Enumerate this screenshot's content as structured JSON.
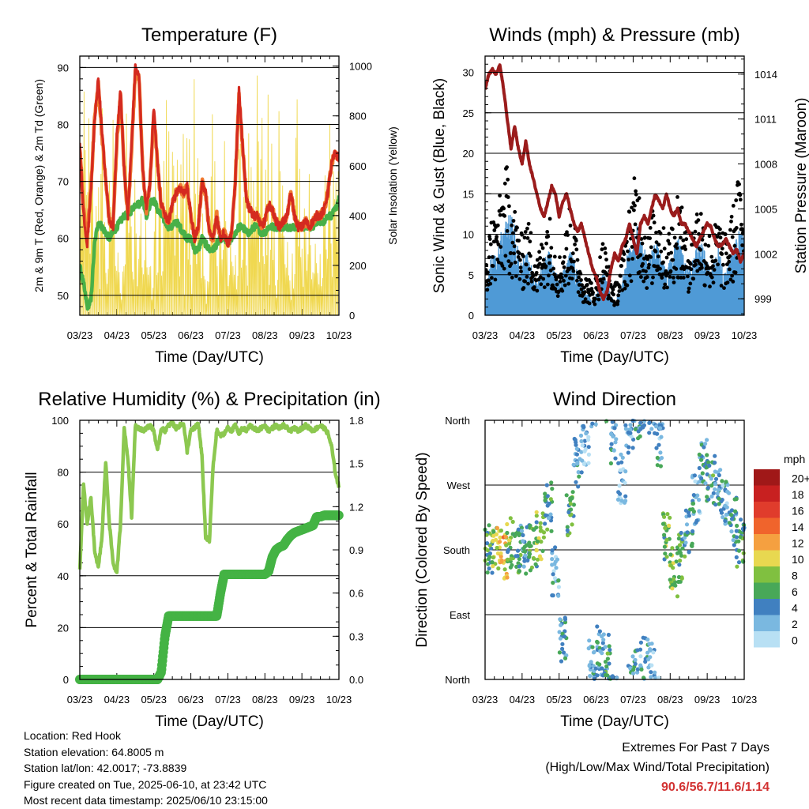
{
  "chart_data": [
    {
      "id": "temperature",
      "type": "line",
      "title": "Temperature (F)",
      "xlabel": "Time (Day/UTC)",
      "ylabel": "2m & 9m T (Red, Orange) & 2m Td (Green)",
      "ylabel_right": "Solar Insolation (Yellow)",
      "x_ticks": [
        "03/23",
        "04/23",
        "05/23",
        "06/23",
        "07/23",
        "08/23",
        "09/23",
        "10/23"
      ],
      "ylim": [
        46.5,
        92
      ],
      "y_ticks": [
        50,
        60,
        70,
        80,
        90
      ],
      "ylim_right": [
        0,
        1040
      ],
      "y_ticks_right": [
        0,
        200,
        400,
        600,
        800,
        1000
      ],
      "grid": "horizontal",
      "x": [
        0,
        0.1,
        0.2,
        0.3,
        0.4,
        0.5,
        0.6,
        0.7,
        0.8,
        0.9,
        1,
        1.1,
        1.2,
        1.3,
        1.4,
        1.5,
        1.6,
        1.7,
        1.8,
        1.9,
        2,
        2.1,
        2.2,
        2.3,
        2.4,
        2.5,
        2.6,
        2.7,
        2.8,
        2.9,
        3,
        3.1,
        3.2,
        3.3,
        3.4,
        3.5,
        3.6,
        3.7,
        3.8,
        3.9,
        4,
        4.1,
        4.2,
        4.3,
        4.4,
        4.5,
        4.6,
        4.7,
        4.8,
        4.9,
        5,
        5.1,
        5.2,
        5.3,
        5.4,
        5.5,
        5.6,
        5.7,
        5.8,
        5.9,
        6,
        6.1,
        6.2,
        6.3,
        6.4,
        6.5,
        6.6,
        6.7,
        6.8,
        6.9,
        7
      ],
      "series": [
        {
          "name": "2m T",
          "color": "#d42a20",
          "values": [
            77,
            64,
            59,
            68,
            81,
            88,
            79,
            70,
            63,
            62,
            78,
            86,
            72,
            64,
            77,
            90,
            89,
            72,
            65,
            70,
            83,
            73,
            66,
            64,
            63,
            66,
            68,
            69,
            68,
            69,
            64,
            60,
            62,
            70,
            68,
            61,
            60,
            64,
            60,
            61,
            59,
            61,
            70,
            86,
            76,
            67,
            65,
            64,
            64,
            62,
            63,
            66,
            65,
            63,
            62,
            63,
            64,
            68,
            64,
            62,
            62,
            63,
            62,
            63,
            64,
            64,
            65,
            68,
            73,
            75,
            74
          ]
        },
        {
          "name": "9m T",
          "color": "#f07a30",
          "values": [
            76,
            65,
            60,
            69,
            81,
            87,
            78,
            70,
            63,
            62,
            77,
            85,
            72,
            64,
            76,
            89,
            88,
            72,
            65,
            70,
            82,
            73,
            66,
            64,
            63,
            66,
            68,
            69,
            68,
            69,
            64,
            60,
            62,
            70,
            68,
            61,
            60,
            64,
            60,
            61,
            59,
            61,
            70,
            85,
            76,
            67,
            65,
            64,
            64,
            62,
            63,
            66,
            65,
            63,
            62,
            63,
            64,
            68,
            64,
            62,
            62,
            63,
            62,
            63,
            64,
            64,
            65,
            68,
            73,
            75,
            74
          ]
        },
        {
          "name": "2m Td",
          "color": "#48b048",
          "values": [
            55,
            52,
            48,
            49,
            59,
            63,
            62,
            61,
            60,
            61,
            62,
            63,
            64,
            64,
            65,
            66,
            66,
            67,
            64,
            66,
            67,
            65,
            64,
            63,
            62,
            62,
            63,
            62,
            61,
            60,
            60,
            58,
            58,
            60,
            59,
            58,
            58,
            59,
            60,
            60,
            59,
            60,
            61,
            62,
            62,
            61,
            61,
            62,
            62,
            61,
            61,
            62,
            62,
            62,
            62,
            62,
            62,
            62,
            62,
            62,
            62,
            62,
            62,
            62,
            63,
            63,
            63,
            64,
            64,
            65,
            67
          ]
        }
      ],
      "series_right": [
        {
          "name": "Solar Insolation",
          "color": "#f0d850"
        }
      ]
    },
    {
      "id": "winds",
      "type": "scatter",
      "title": "Winds (mph) & Pressure (mb)",
      "xlabel": "Time (Day/UTC)",
      "ylabel": "Sonic Wind & Gust (Blue, Black)",
      "ylabel_right": "Station Pressure (Maroon)",
      "x_ticks": [
        "03/23",
        "04/23",
        "05/23",
        "06/23",
        "07/23",
        "08/23",
        "09/23",
        "10/23"
      ],
      "ylim": [
        0,
        32
      ],
      "y_ticks": [
        0,
        5,
        10,
        15,
        20,
        25,
        30
      ],
      "ylim_right": [
        997.9,
        1015.2
      ],
      "y_ticks_right": [
        999,
        1002,
        1005,
        1008,
        1011,
        1014
      ],
      "grid": "horizontal",
      "x": [
        0,
        0.1,
        0.2,
        0.3,
        0.4,
        0.5,
        0.6,
        0.7,
        0.8,
        0.9,
        1,
        1.1,
        1.2,
        1.3,
        1.4,
        1.5,
        1.6,
        1.7,
        1.8,
        1.9,
        2,
        2.1,
        2.2,
        2.3,
        2.4,
        2.5,
        2.6,
        2.7,
        2.8,
        2.9,
        3,
        3.1,
        3.2,
        3.3,
        3.4,
        3.5,
        3.6,
        3.7,
        3.8,
        3.9,
        4,
        4.1,
        4.2,
        4.3,
        4.4,
        4.5,
        4.6,
        4.7,
        4.8,
        4.9,
        5,
        5.1,
        5.2,
        5.3,
        5.4,
        5.5,
        5.6,
        5.7,
        5.8,
        5.9,
        6,
        6.1,
        6.2,
        6.3,
        6.4,
        6.5,
        6.6,
        6.7,
        6.8,
        6.9,
        7
      ],
      "series": [
        {
          "name": "Sonic Wind",
          "color": "#4f9ad6",
          "values": [
            2,
            4,
            6,
            5,
            7,
            8,
            9,
            9,
            8,
            6,
            5,
            6,
            5,
            4,
            3,
            4,
            5,
            6,
            5,
            4,
            3,
            4,
            5,
            6,
            5,
            4,
            3,
            2,
            2,
            1,
            2,
            3,
            4,
            3,
            2,
            1,
            2,
            3,
            5,
            6,
            7,
            8,
            7,
            6,
            5,
            6,
            7,
            6,
            5,
            4,
            5,
            6,
            7,
            6,
            5,
            4,
            5,
            6,
            7,
            6,
            5,
            4,
            5,
            6,
            5,
            4,
            5,
            6,
            7,
            8,
            7
          ]
        },
        {
          "name": "Gust",
          "color": "#000000",
          "values": [
            4,
            8,
            11,
            10,
            12,
            14,
            15,
            13,
            11,
            9,
            8,
            10,
            9,
            8,
            6,
            7,
            9,
            11,
            9,
            7,
            6,
            7,
            9,
            11,
            10,
            7,
            5,
            4,
            4,
            3,
            4,
            6,
            8,
            6,
            4,
            3,
            4,
            6,
            9,
            11,
            13,
            15,
            12,
            10,
            8,
            10,
            12,
            11,
            9,
            8,
            9,
            11,
            13,
            11,
            9,
            8,
            9,
            11,
            12,
            10,
            9,
            8,
            9,
            10,
            9,
            8,
            9,
            11,
            13,
            15,
            14
          ]
        },
        {
          "name": "Station Pressure",
          "color": "#9b1c1c",
          "values": [
            1013,
            1014,
            1014.3,
            1014,
            1014.6,
            1013,
            1011,
            1009,
            1010.5,
            1009,
            1008,
            1009.5,
            1008,
            1007,
            1006,
            1005,
            1004.5,
            1005.5,
            1006.5,
            1006,
            1004.5,
            1005.5,
            1006,
            1005,
            1004,
            1003.5,
            1004,
            1003,
            1002,
            1001,
            1000.5,
            999.5,
            999,
            999.5,
            1001,
            1002,
            1001.5,
            1002.5,
            1003,
            1004,
            1003,
            1002,
            1004,
            1004.5,
            1004,
            1005,
            1006,
            1005.5,
            1005,
            1006,
            1005,
            1004.5,
            1005,
            1004,
            1004,
            1003.5,
            1003,
            1002.5,
            1003,
            1003.5,
            1004,
            1003.8,
            1003,
            1002.5,
            1002.6,
            1003,
            1002.5,
            1002,
            1002.3,
            1001.5,
            1002
          ]
        }
      ]
    },
    {
      "id": "humidity",
      "type": "line",
      "title": "Relative Humidity (%) & Precipitation (in)",
      "xlabel": "Time (Day/UTC)",
      "ylabel": "Percent & Total Rainfall",
      "x_ticks": [
        "03/23",
        "04/23",
        "05/23",
        "06/23",
        "07/23",
        "08/23",
        "09/23",
        "10/23"
      ],
      "ylim": [
        0,
        100
      ],
      "y_ticks": [
        0,
        20,
        40,
        60,
        80,
        100
      ],
      "ylim_right": [
        0,
        1.8
      ],
      "y_ticks_right": [
        "0.0",
        "0.3",
        "0.6",
        "0.9",
        "1.2",
        "1.5",
        "1.8"
      ],
      "grid": "horizontal",
      "x": [
        0,
        0.1,
        0.2,
        0.3,
        0.4,
        0.5,
        0.6,
        0.7,
        0.8,
        0.9,
        1,
        1.1,
        1.2,
        1.3,
        1.4,
        1.5,
        1.6,
        1.7,
        1.8,
        1.9,
        2,
        2.1,
        2.2,
        2.3,
        2.4,
        2.5,
        2.6,
        2.7,
        2.8,
        2.9,
        3,
        3.1,
        3.2,
        3.3,
        3.4,
        3.5,
        3.6,
        3.7,
        3.8,
        3.9,
        4,
        4.1,
        4.2,
        4.3,
        4.4,
        4.5,
        4.6,
        4.7,
        4.8,
        4.9,
        5,
        5.1,
        5.2,
        5.3,
        5.4,
        5.5,
        5.6,
        5.7,
        5.8,
        5.9,
        6,
        6.1,
        6.2,
        6.3,
        6.4,
        6.5,
        6.6,
        6.7,
        6.8,
        6.9,
        7
      ],
      "series": [
        {
          "name": "Relative Humidity",
          "color": "#8cc850",
          "values": [
            42,
            75,
            60,
            70,
            50,
            43,
            55,
            84,
            60,
            45,
            41,
            60,
            97,
            85,
            63,
            98,
            97,
            96,
            97,
            98,
            96,
            88,
            97,
            96,
            98,
            99,
            97,
            98,
            99,
            88,
            96,
            97,
            99,
            86,
            55,
            53,
            82,
            96,
            94,
            95,
            97,
            96,
            98,
            95,
            97,
            96,
            98,
            97,
            96,
            97,
            98,
            96,
            97,
            98,
            97,
            98,
            97,
            96,
            97,
            96,
            97,
            98,
            97,
            96,
            97,
            98,
            97,
            95,
            90,
            80,
            74
          ]
        },
        {
          "name": "Total Precipitation",
          "color": "#44b344",
          "values": [
            0,
            0,
            0,
            0,
            0,
            0,
            0,
            0,
            0,
            0,
            0,
            0,
            0,
            0,
            0,
            0,
            0,
            0,
            0,
            0,
            0,
            0,
            0.05,
            0.3,
            0.44,
            0.44,
            0.44,
            0.44,
            0.44,
            0.44,
            0.44,
            0.44,
            0.44,
            0.44,
            0.44,
            0.44,
            0.44,
            0.44,
            0.6,
            0.73,
            0.73,
            0.73,
            0.73,
            0.73,
            0.73,
            0.73,
            0.73,
            0.73,
            0.73,
            0.73,
            0.73,
            0.75,
            0.85,
            0.9,
            0.92,
            0.93,
            0.97,
            1.0,
            1.02,
            1.03,
            1.04,
            1.05,
            1.06,
            1.07,
            1.13,
            1.13,
            1.14,
            1.14,
            1.14,
            1.14,
            1.14
          ]
        }
      ]
    },
    {
      "id": "wind_direction",
      "type": "scatter",
      "title": "Wind Direction",
      "xlabel": "Time (Day/UTC)",
      "ylabel": "Direction (Colored By Speed)",
      "x_ticks": [
        "03/23",
        "04/23",
        "05/23",
        "06/23",
        "07/23",
        "08/23",
        "09/23",
        "10/23"
      ],
      "ylim": [
        0,
        360
      ],
      "y_ticks": [
        "North",
        "East",
        "South",
        "West",
        "North"
      ],
      "grid": "horizontal",
      "colorbar": {
        "title": "mph",
        "labels": [
          "20+",
          "18",
          "16",
          "14",
          "12",
          "10",
          "8",
          "6",
          "4",
          "2",
          "0"
        ],
        "colors": [
          "#a01818",
          "#c82020",
          "#e03c2c",
          "#f0642c",
          "#f5a040",
          "#e8d850",
          "#80c040",
          "#48a858",
          "#4080c0",
          "#7ab8e0",
          "#b8e0f4"
        ]
      },
      "x": [
        0.1,
        0.3,
        0.5,
        0.7,
        0.9,
        1.1,
        1.3,
        1.5,
        1.7,
        1.9,
        2.1,
        2.3,
        2.5,
        2.7,
        2.9,
        3.1,
        3.3,
        3.5,
        3.7,
        3.9,
        4.1,
        4.3,
        4.5,
        4.7,
        4.9,
        5.1,
        5.3,
        5.5,
        5.7,
        5.9,
        6.1,
        6.3,
        6.5,
        6.7,
        6.9
      ],
      "direction": [
        180,
        185,
        175,
        190,
        182,
        178,
        185,
        200,
        240,
        150,
        60,
        230,
        300,
        320,
        20,
        40,
        30,
        330,
        280,
        350,
        10,
        25,
        15,
        330,
        200,
        150,
        170,
        210,
        250,
        300,
        280,
        260,
        250,
        220,
        190
      ],
      "speed": [
        6,
        9,
        11,
        7,
        5,
        4,
        6,
        8,
        5,
        3,
        4,
        6,
        3,
        2,
        3,
        4,
        5,
        3,
        2,
        3,
        4,
        3,
        2,
        3,
        7,
        8,
        6,
        4,
        3,
        4,
        5,
        4,
        3,
        5,
        6
      ]
    }
  ],
  "info": {
    "location": "Location: Red Hook",
    "elevation": "Station elevation: 64.8005 m",
    "latlon": "Station lat/lon: 42.0017; -73.8839",
    "created": "Figure created on Tue, 2025-06-10, at 23:42 UTC",
    "recent": "Most recent data timestamp: 2025/06/10 23:15:00",
    "extremes_title": "Extremes For Past 7 Days",
    "extremes_sub": "(High/Low/Max Wind/Total Precipitation)",
    "extremes_values": "90.6/56.7/11.6/1.14"
  }
}
